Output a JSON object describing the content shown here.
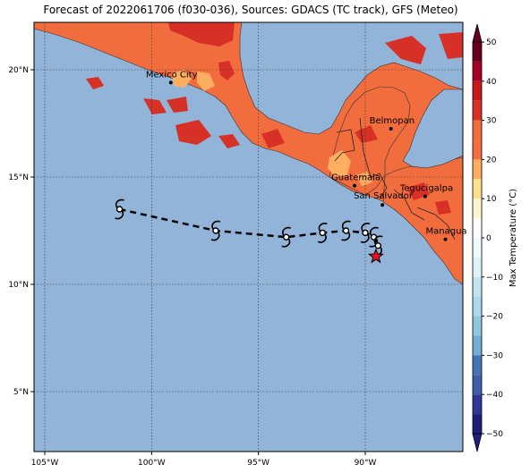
{
  "title": "Forecast of 2022061706 (f030-036), Sources: GDACS (TC track), GFS (Meteo)",
  "colors": {
    "ocean": "#92b4d9",
    "land_main": "#f26d3e",
    "land_warm": "#d73027",
    "land_cool": "#fdae61",
    "track": "#000000",
    "current_position": "#e8111a"
  },
  "map": {
    "lon_ticks": [
      {
        "label": "105°W",
        "lon": -105
      },
      {
        "label": "100°W",
        "lon": -100
      },
      {
        "label": "95°W",
        "lon": -95
      },
      {
        "label": "90°W",
        "lon": -90
      }
    ],
    "lat_ticks": [
      {
        "label": "20°N",
        "lat": 20
      },
      {
        "label": "15°N",
        "lat": 15
      },
      {
        "label": "10°N",
        "lat": 10
      },
      {
        "label": "5°N",
        "lat": 5
      }
    ],
    "cities": [
      {
        "name": "Mexico City",
        "lon": -99.1,
        "lat": 19.4
      },
      {
        "name": "Belmopan",
        "lon": -88.8,
        "lat": 17.25
      },
      {
        "name": "Guatemala",
        "lon": -90.5,
        "lat": 14.6
      },
      {
        "name": "San Salvador",
        "lon": -89.2,
        "lat": 13.7
      },
      {
        "name": "Tegucigalpa",
        "lon": -87.2,
        "lat": 14.1
      },
      {
        "name": "Managua",
        "lon": -86.25,
        "lat": 12.1
      }
    ],
    "track_points": [
      {
        "lon": -101.5,
        "lat": 13.5
      },
      {
        "lon": -97.0,
        "lat": 12.5
      },
      {
        "lon": -93.7,
        "lat": 12.2
      },
      {
        "lon": -92.0,
        "lat": 12.4
      },
      {
        "lon": -90.9,
        "lat": 12.5
      },
      {
        "lon": -90.0,
        "lat": 12.4
      },
      {
        "lon": -89.6,
        "lat": 12.2
      },
      {
        "lon": -89.4,
        "lat": 11.8
      }
    ],
    "current_position": {
      "lon": -89.5,
      "lat": 11.3
    }
  },
  "colorbar": {
    "label": "Max Temperature (°C)",
    "ticks": [
      50,
      40,
      30,
      20,
      10,
      0,
      -10,
      -20,
      -30,
      -40,
      -50
    ],
    "bins": [
      {
        "from": 45,
        "to": 50,
        "color": "#67001f"
      },
      {
        "from": 40,
        "to": 45,
        "color": "#a50026"
      },
      {
        "from": 35,
        "to": 40,
        "color": "#c51b1b"
      },
      {
        "from": 30,
        "to": 35,
        "color": "#d73027"
      },
      {
        "from": 25,
        "to": 30,
        "color": "#f26d3e"
      },
      {
        "from": 20,
        "to": 25,
        "color": "#f46d43"
      },
      {
        "from": 15,
        "to": 20,
        "color": "#fdae61"
      },
      {
        "from": 10,
        "to": 15,
        "color": "#fee090"
      },
      {
        "from": 5,
        "to": 10,
        "color": "#fff5d0"
      },
      {
        "from": 0,
        "to": 5,
        "color": "#ffffff"
      },
      {
        "from": -5,
        "to": 0,
        "color": "#f0f9fb"
      },
      {
        "from": -10,
        "to": -5,
        "color": "#e0f3f8"
      },
      {
        "from": -15,
        "to": -10,
        "color": "#c2e4ef"
      },
      {
        "from": -20,
        "to": -15,
        "color": "#abd9e9"
      },
      {
        "from": -25,
        "to": -20,
        "color": "#92c5de"
      },
      {
        "from": -30,
        "to": -25,
        "color": "#74add1"
      },
      {
        "from": -35,
        "to": -30,
        "color": "#4575b4"
      },
      {
        "from": -40,
        "to": -35,
        "color": "#3d5fa8"
      },
      {
        "from": -45,
        "to": -40,
        "color": "#313695"
      },
      {
        "from": -50,
        "to": -45,
        "color": "#1f1f7a"
      }
    ]
  }
}
